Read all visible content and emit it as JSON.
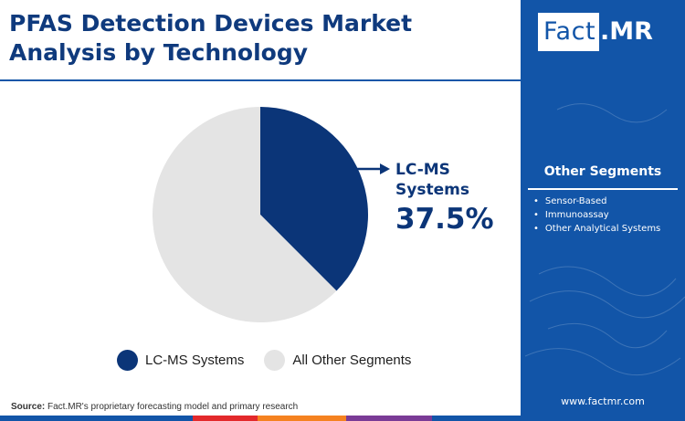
{
  "title": {
    "line1": "PFAS Detection Devices Market",
    "line2": "Analysis by Technology"
  },
  "brand": {
    "logo_left": "Fact",
    "logo_dot": ".",
    "logo_right": "MR",
    "website": "www.factmr.com"
  },
  "callout": {
    "label_line1": "LC-MS",
    "label_line2": "Systems",
    "value": "37.5%"
  },
  "other_segments": {
    "title": "Other Segments",
    "items": [
      "Sensor-Based",
      "Immunoassay",
      "Other Analytical Systems"
    ]
  },
  "source": {
    "label": "Source:",
    "text": " Fact.MR's proprietary forecasting model and primary research"
  },
  "colors": {
    "primary": "#0b3578",
    "other": "#e4e4e4",
    "side_panel": "#1255a8",
    "bottom_bar": [
      "#1255a8",
      "#e3292b",
      "#f58220",
      "#7a3b96",
      "#1255a8"
    ]
  },
  "chart_data": {
    "type": "pie",
    "title": "PFAS Detection Devices Market Analysis by Technology",
    "slices": [
      {
        "label": "LC-MS Systems",
        "value": 37.5,
        "color": "#0b3578"
      },
      {
        "label": "All Other Segments",
        "value": 62.5,
        "color": "#e4e4e4"
      }
    ],
    "start_angle": "12 o'clock",
    "direction": "clockwise",
    "legend_position": "bottom"
  }
}
